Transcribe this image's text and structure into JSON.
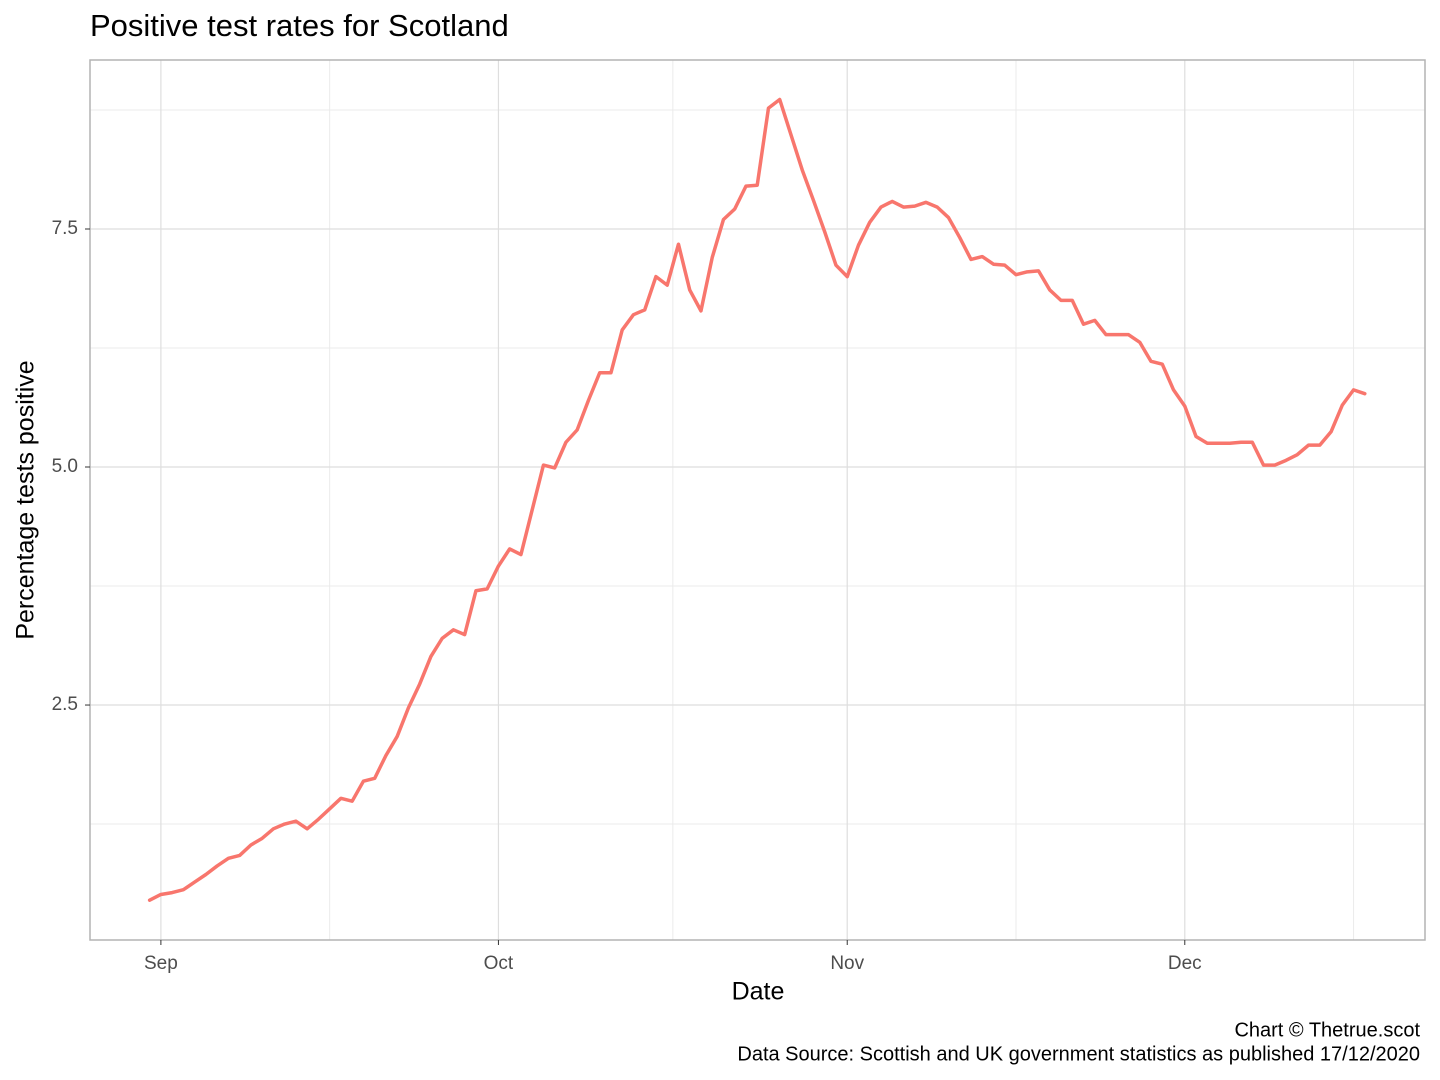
{
  "chart_data": {
    "type": "line",
    "title": "Positive test rates for Scotland",
    "xlabel": "Date",
    "ylabel": "Percentage tests positive",
    "caption": [
      "Chart © Thetrue.scot",
      "Data Source: Scottish and UK government statistics as published 17/12/2020"
    ],
    "color": "#F8766D",
    "grid": true,
    "xlim": [
      -6.3,
      112.35
    ],
    "ylim": [
      0.032,
      9.275
    ],
    "xticks": [
      {
        "value": 0,
        "label": "Sep"
      },
      {
        "value": 30,
        "label": "Oct"
      },
      {
        "value": 61,
        "label": "Nov"
      },
      {
        "value": 91,
        "label": "Dec"
      }
    ],
    "yticks": [
      2.5,
      {
        "value": 5,
        "label": "5.0"
      },
      7.5
    ],
    "x": [
      -1,
      0,
      1,
      2,
      3,
      4,
      5,
      6,
      7,
      8,
      9,
      10,
      11,
      12,
      13,
      14,
      15,
      16,
      17,
      18,
      19,
      20,
      21,
      22,
      23,
      24,
      25,
      26,
      27,
      28,
      29,
      30,
      31,
      32,
      33,
      34,
      35,
      36,
      37,
      38,
      39,
      40,
      41,
      42,
      43,
      44,
      45,
      46,
      47,
      48,
      49,
      50,
      51,
      52,
      53,
      54,
      55,
      56,
      57,
      58,
      59,
      60,
      61,
      62,
      63,
      64,
      65,
      66,
      67,
      68,
      69,
      70,
      71,
      72,
      73,
      74,
      75,
      76,
      77,
      78,
      79,
      80,
      81,
      82,
      83,
      84,
      85,
      86,
      87,
      88,
      89,
      90,
      91,
      92,
      93,
      94,
      95,
      96,
      97,
      98,
      99,
      100,
      101,
      102,
      103,
      104,
      105,
      106,
      107
    ],
    "values": [
      0.45,
      0.51,
      0.53,
      0.56,
      0.64,
      0.72,
      0.81,
      0.89,
      0.92,
      1.03,
      1.1,
      1.2,
      1.25,
      1.28,
      1.2,
      1.3,
      1.41,
      1.52,
      1.49,
      1.7,
      1.73,
      1.97,
      2.17,
      2.47,
      2.72,
      3.01,
      3.2,
      3.29,
      3.24,
      3.7,
      3.72,
      3.96,
      4.14,
      4.08,
      4.55,
      5.02,
      4.99,
      5.26,
      5.39,
      5.7,
      5.99,
      5.99,
      6.44,
      6.6,
      6.65,
      7.0,
      6.91,
      7.34,
      6.86,
      6.64,
      7.2,
      7.6,
      7.71,
      7.95,
      7.96,
      8.77,
      8.86,
      8.49,
      8.12,
      7.8,
      7.47,
      7.12,
      7.0,
      7.33,
      7.57,
      7.73,
      7.79,
      7.73,
      7.74,
      7.78,
      7.73,
      7.62,
      7.41,
      7.18,
      7.21,
      7.13,
      7.12,
      7.02,
      7.05,
      7.06,
      6.86,
      6.75,
      6.75,
      6.5,
      6.54,
      6.39,
      6.39,
      6.39,
      6.31,
      6.11,
      6.08,
      5.81,
      5.64,
      5.32,
      5.25,
      5.25,
      5.25,
      5.26,
      5.26,
      5.02,
      5.02,
      5.07,
      5.13,
      5.23,
      5.23,
      5.37,
      5.65,
      5.81,
      5.77
    ]
  }
}
